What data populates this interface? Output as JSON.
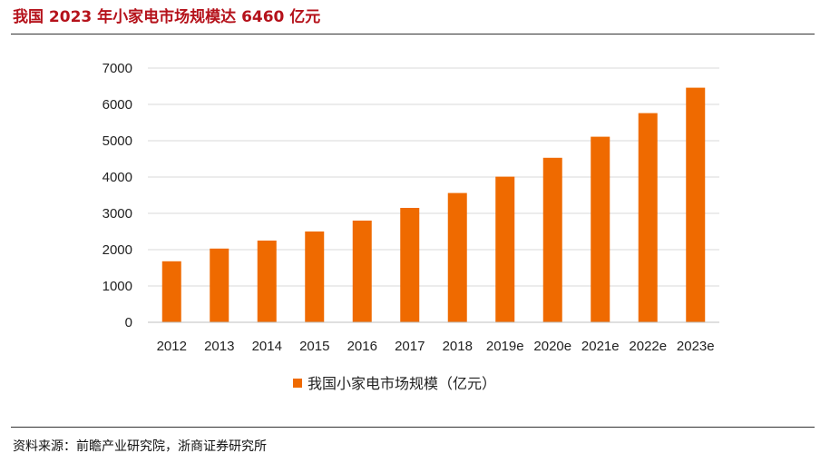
{
  "header": {
    "title": "我国 2023 年小家电市场规模达 6460 亿元"
  },
  "footer": {
    "source": "资料来源：前瞻产业研究院，浙商证券研究所"
  },
  "colors": {
    "bar": "#ef6a00",
    "title": "#b5121b",
    "grid": "#d9d9d9"
  },
  "chart_data": {
    "type": "bar",
    "title": "我国 2023 年小家电市场规模达 6460 亿元",
    "categories": [
      "2012",
      "2013",
      "2014",
      "2015",
      "2016",
      "2017",
      "2018",
      "2019e",
      "2020e",
      "2021e",
      "2022e",
      "2023e"
    ],
    "series": [
      {
        "name": "我国小家电市场规模（亿元）",
        "values": [
          1680,
          2030,
          2250,
          2500,
          2800,
          3150,
          3560,
          4010,
          4530,
          5110,
          5760,
          6460
        ]
      }
    ],
    "ylim": [
      0,
      7000
    ],
    "yticks": [
      0,
      1000,
      2000,
      3000,
      4000,
      5000,
      6000,
      7000
    ],
    "xlabel": "",
    "ylabel": "",
    "grid": true,
    "legend": "bottom-center"
  }
}
